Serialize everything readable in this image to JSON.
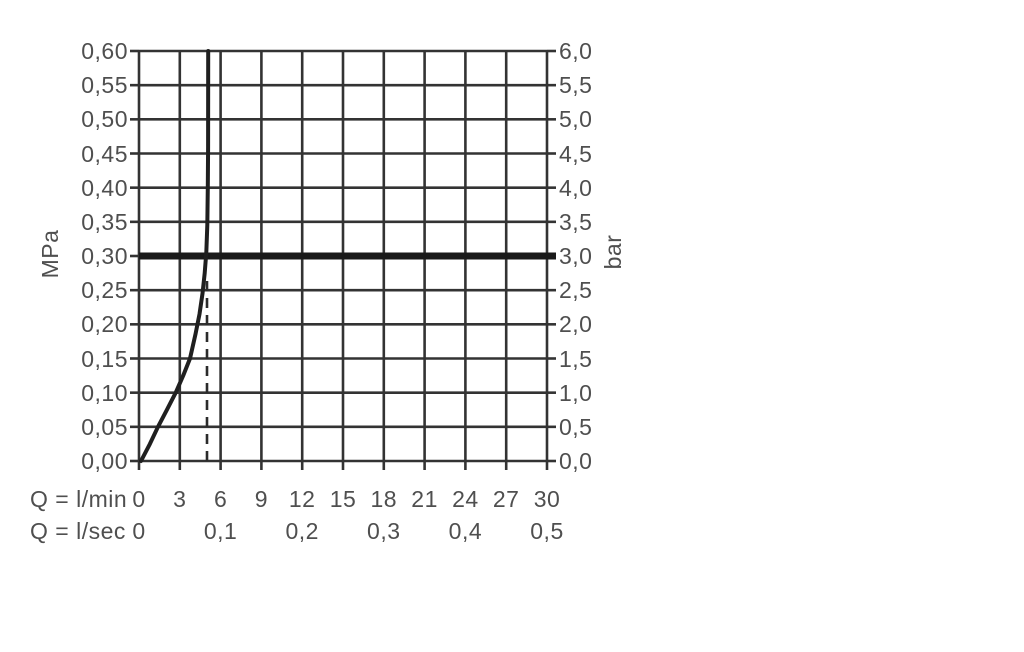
{
  "chart_data": {
    "type": "line",
    "description": "pressure-flow-diagram",
    "x_axis": {
      "row1_label": "Q = l/min",
      "row2_label": "Q = l/sec",
      "range_lmin": [
        0,
        30
      ],
      "gridline_step_lmin": 3,
      "row1_ticks": [
        {
          "label": "0",
          "q": 0
        },
        {
          "label": "3",
          "q": 3
        },
        {
          "label": "6",
          "q": 6
        },
        {
          "label": "9",
          "q": 9
        },
        {
          "label": "12",
          "q": 12
        },
        {
          "label": "15",
          "q": 15
        },
        {
          "label": "18",
          "q": 18
        },
        {
          "label": "21",
          "q": 21
        },
        {
          "label": "24",
          "q": 24
        },
        {
          "label": "27",
          "q": 27
        },
        {
          "label": "30",
          "q": 30
        }
      ],
      "row2_ticks": [
        {
          "label": "0",
          "q": 0
        },
        {
          "label": "0,1",
          "q": 6
        },
        {
          "label": "0,2",
          "q": 12
        },
        {
          "label": "0,3",
          "q": 18
        },
        {
          "label": "0,4",
          "q": 24
        },
        {
          "label": "0,5",
          "q": 30
        }
      ]
    },
    "y_axis_left": {
      "unit": "MPa",
      "range_mpa": [
        0,
        0.6
      ],
      "ticks": [
        {
          "label": "0,00",
          "mpa": 0.0
        },
        {
          "label": "0,05",
          "mpa": 0.05
        },
        {
          "label": "0,10",
          "mpa": 0.1
        },
        {
          "label": "0,15",
          "mpa": 0.15
        },
        {
          "label": "0,20",
          "mpa": 0.2
        },
        {
          "label": "0,25",
          "mpa": 0.25
        },
        {
          "label": "0,30",
          "mpa": 0.3
        },
        {
          "label": "0,35",
          "mpa": 0.35
        },
        {
          "label": "0,40",
          "mpa": 0.4
        },
        {
          "label": "0,45",
          "mpa": 0.45
        },
        {
          "label": "0,50",
          "mpa": 0.5
        },
        {
          "label": "0,55",
          "mpa": 0.55
        },
        {
          "label": "0,60",
          "mpa": 0.6
        }
      ]
    },
    "y_axis_right": {
      "unit": "bar",
      "range_bar": [
        0,
        6
      ],
      "ticks": [
        {
          "label": "0,0",
          "bar": 0.0
        },
        {
          "label": "0,5",
          "bar": 0.5
        },
        {
          "label": "1,0",
          "bar": 1.0
        },
        {
          "label": "1,5",
          "bar": 1.5
        },
        {
          "label": "2,0",
          "bar": 2.0
        },
        {
          "label": "2,5",
          "bar": 2.5
        },
        {
          "label": "3,0",
          "bar": 3.0
        },
        {
          "label": "3,5",
          "bar": 3.5
        },
        {
          "label": "4,0",
          "bar": 4.0
        },
        {
          "label": "4,5",
          "bar": 4.5
        },
        {
          "label": "5,0",
          "bar": 5.0
        },
        {
          "label": "5,5",
          "bar": 5.5
        },
        {
          "label": "6,0",
          "bar": 6.0
        }
      ]
    },
    "reference_line": {
      "mpa": 0.3,
      "bar": 3.0
    },
    "dashed_operating_line": {
      "q_lmin": 5.0,
      "from_mpa": 0.0,
      "to_mpa": 0.272
    },
    "series": [
      {
        "name": "pressure-flow-curve",
        "points_q_lmin_vs_mpa": [
          [
            0.15,
            0.0
          ],
          [
            0.8,
            0.025
          ],
          [
            1.4,
            0.05
          ],
          [
            2.05,
            0.075
          ],
          [
            2.7,
            0.1
          ],
          [
            3.25,
            0.125
          ],
          [
            3.75,
            0.15
          ],
          [
            4.15,
            0.185
          ],
          [
            4.45,
            0.215
          ],
          [
            4.67,
            0.245
          ],
          [
            4.83,
            0.275
          ],
          [
            4.95,
            0.305
          ],
          [
            5.02,
            0.345
          ],
          [
            5.06,
            0.4
          ],
          [
            5.08,
            0.46
          ],
          [
            5.09,
            0.6
          ]
        ]
      }
    ],
    "grid": true,
    "colors": {
      "background": "#ffffff",
      "grid": "#333333",
      "text": "#4f4f4f",
      "curve": "#1f1f1f",
      "reference_line": "#1a1a1a",
      "dashed_line": "#2b2b2b"
    }
  }
}
